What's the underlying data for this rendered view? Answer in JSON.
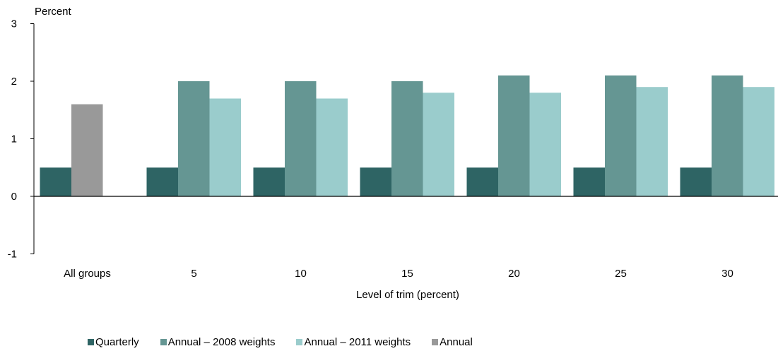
{
  "chart_data": {
    "type": "bar",
    "ylabel": "Percent",
    "xlabel": "Level of trim (percent)",
    "ylim": [
      -1,
      3
    ],
    "yticks": [
      -1,
      0,
      1,
      2,
      3
    ],
    "grid": false,
    "legend_position": "bottom",
    "categories": [
      "All groups",
      "5",
      "10",
      "15",
      "20",
      "25",
      "30"
    ],
    "series": [
      {
        "name": "Quarterly",
        "color": "#2e6464",
        "values": [
          0.5,
          0.5,
          0.5,
          0.5,
          0.5,
          0.5,
          0.5
        ]
      },
      {
        "name": "Annual – 2008 weights",
        "color": "#659693",
        "values": [
          null,
          2.0,
          2.0,
          2.0,
          2.1,
          2.1,
          2.1
        ]
      },
      {
        "name": "Annual – 2011 weights",
        "color": "#9acccc",
        "values": [
          null,
          1.7,
          1.7,
          1.8,
          1.8,
          1.9,
          1.9
        ]
      },
      {
        "name": "Annual",
        "color": "#999999",
        "values": [
          1.6,
          null,
          null,
          null,
          null,
          null,
          null
        ]
      }
    ]
  }
}
